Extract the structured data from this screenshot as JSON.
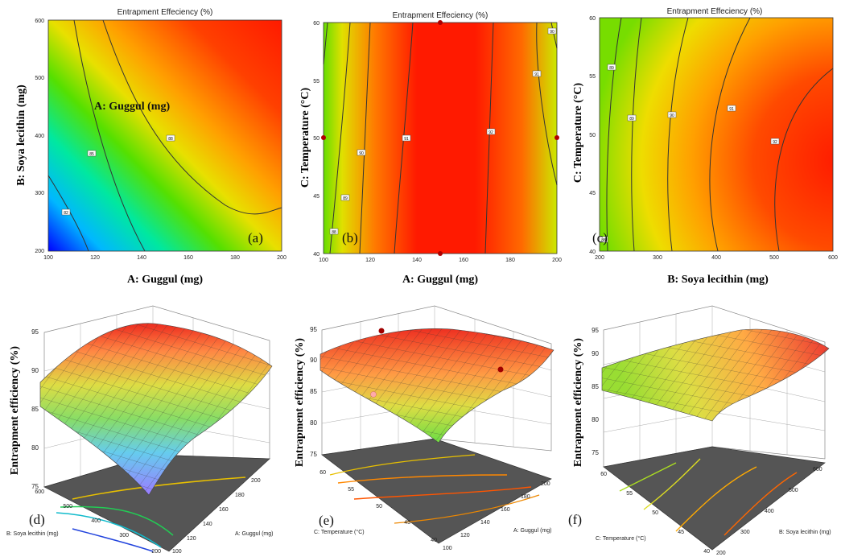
{
  "chart_data": [
    {
      "id": "a",
      "type": "contour",
      "title": "Entrapment Effeciency (%)",
      "xlabel": "A: Guggul (mg)",
      "ylabel": "B: Soya lecithin (mg)",
      "xlim": [
        100,
        200
      ],
      "ylim": [
        200,
        600
      ],
      "xticks": [
        "100",
        "120",
        "140",
        "160",
        "180",
        "200"
      ],
      "yticks": [
        "200",
        "300",
        "400",
        "500",
        "600"
      ],
      "annotation": "A: Guggul (mg)",
      "panel_label": "(a)",
      "contour_labels": [
        "82",
        "85",
        "88"
      ]
    },
    {
      "id": "b",
      "type": "contour",
      "title": "Entrapment Effeciency (%)",
      "xlabel": "A: Guggul (mg)",
      "ylabel": "C: Temperature (°C)",
      "xlim": [
        100,
        200
      ],
      "ylim": [
        40,
        60
      ],
      "xticks": [
        "100",
        "120",
        "140",
        "160",
        "180",
        "200"
      ],
      "yticks": [
        "40",
        "45",
        "50",
        "55",
        "60"
      ],
      "panel_label": "(b)",
      "contour_labels": [
        "88",
        "89",
        "90",
        "91",
        "92",
        "91",
        "90",
        "89"
      ],
      "design_points": [
        [
          100,
          50
        ],
        [
          150,
          60
        ],
        [
          150,
          40
        ],
        [
          200,
          50
        ]
      ]
    },
    {
      "id": "c",
      "type": "contour",
      "title": "Entrapment Effeciency (%)",
      "xlabel": "B: Soya lecithin (mg)",
      "ylabel": "C: Temperature (°C)",
      "xlim": [
        200,
        600
      ],
      "ylim": [
        40,
        60
      ],
      "xticks": [
        "200",
        "300",
        "400",
        "500",
        "600"
      ],
      "yticks": [
        "40",
        "45",
        "50",
        "55",
        "60"
      ],
      "panel_label": "(c)",
      "contour_labels": [
        "88",
        "89",
        "89",
        "90",
        "91",
        "92"
      ]
    },
    {
      "id": "d",
      "type": "surface",
      "zlabel": "Entrapment efficiency (%)",
      "zticks": [
        "75",
        "80",
        "85",
        "90",
        "95"
      ],
      "xaxis_label": "B: Soya lecithin (mg)",
      "xticks": [
        "200",
        "300",
        "400",
        "500",
        "600"
      ],
      "yaxis_label": "A: Guggul  (mg)",
      "yticks": [
        "100",
        "120",
        "140",
        "160",
        "180",
        "200"
      ],
      "panel_label": "(d)"
    },
    {
      "id": "e",
      "type": "surface",
      "zlabel": "Entrapment efficiency (%)",
      "zticks": [
        "75",
        "80",
        "85",
        "90",
        "95"
      ],
      "xaxis_label": "C: Temperature (°C)",
      "xticks": [
        "40",
        "45",
        "50",
        "55",
        "60"
      ],
      "yaxis_label": "A: Guggul  (mg)",
      "yticks": [
        "100",
        "120",
        "140",
        "160",
        "180",
        "200"
      ],
      "panel_label": "(e)"
    },
    {
      "id": "f",
      "type": "surface",
      "zlabel": "Entrapment efficiency (%)",
      "zticks": [
        "75",
        "80",
        "85",
        "90",
        "95"
      ],
      "xaxis_label": "C: Temperature (°C)",
      "xticks": [
        "40",
        "45",
        "50",
        "55",
        "60"
      ],
      "yaxis_label": "B: Soya lecithin (mg)",
      "yticks": [
        "200",
        "300",
        "400",
        "500",
        "600"
      ],
      "panel_label": "(f)"
    }
  ]
}
